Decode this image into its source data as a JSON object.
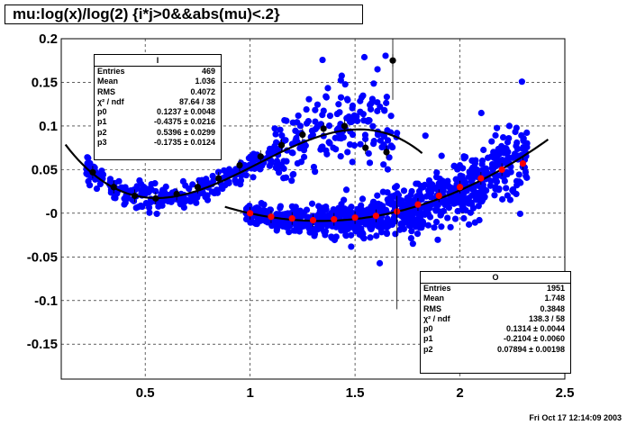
{
  "title": "mu:log(x)/log(2) {i*j>0&&abs(mu)<.2}",
  "footer": "Fri Oct 17 12:14:09 2003",
  "chart_data": {
    "type": "scatter",
    "xlim": [
      0.1,
      2.5
    ],
    "ylim": [
      -0.19,
      0.2
    ],
    "grid": true,
    "x_ticks": [
      "0.5",
      "1",
      "1.5",
      "2",
      "2.5"
    ],
    "y_ticks": [
      "0.2",
      "0.15",
      "0.1",
      "0.05",
      "-0",
      "-0.05",
      "-0.1",
      "-0.15"
    ],
    "series": [
      {
        "name": "I",
        "marker_color": "#000000",
        "fit_color": "#000000",
        "profile_x": [
          0.25,
          0.35,
          0.45,
          0.55,
          0.65,
          0.75,
          0.85,
          0.95,
          1.05,
          1.15,
          1.25,
          1.35,
          1.45,
          1.55,
          1.65,
          1.68
        ],
        "profile_y": [
          0.047,
          0.03,
          0.02,
          0.017,
          0.022,
          0.03,
          0.04,
          0.055,
          0.065,
          0.078,
          0.09,
          0.097,
          0.1,
          0.075,
          0.07,
          0.175
        ],
        "fit": {
          "p0": 0.1237,
          "p1": -0.4375,
          "p2": 0.5396,
          "p3": -0.1735,
          "x_range": [
            0.12,
            1.82
          ]
        }
      },
      {
        "name": "O",
        "marker_color": "#ff0000",
        "fit_color": "#000000",
        "profile_x": [
          1.0,
          1.1,
          1.2,
          1.3,
          1.4,
          1.5,
          1.6,
          1.7,
          1.8,
          1.9,
          2.0,
          2.1,
          2.2,
          2.3
        ],
        "profile_y": [
          0.0,
          -0.004,
          -0.006,
          -0.008,
          -0.007,
          -0.005,
          -0.003,
          0.002,
          0.01,
          0.02,
          0.03,
          0.04,
          0.05,
          0.057
        ],
        "fit": {
          "p0": 0.1314,
          "p1": -0.2104,
          "p2": 0.07894,
          "x_range": [
            0.88,
            2.42
          ]
        }
      }
    ],
    "scatter_color": "#0000ff"
  },
  "stats_I": {
    "name": "I",
    "rows": [
      [
        "Entries",
        "469"
      ],
      [
        "Mean",
        "1.036"
      ],
      [
        "RMS",
        "0.4072"
      ],
      [
        "χ² / ndf",
        "87.64 / 38"
      ],
      [
        "p0",
        "0.1237 ± 0.0048"
      ],
      [
        "p1",
        "-0.4375 ± 0.0216"
      ],
      [
        "p2",
        "0.5396 ± 0.0299"
      ],
      [
        "p3",
        "-0.1735 ± 0.0124"
      ]
    ]
  },
  "stats_O": {
    "name": "O",
    "rows": [
      [
        "Entries",
        "1951"
      ],
      [
        "Mean",
        "1.748"
      ],
      [
        "RMS",
        "0.3848"
      ],
      [
        "χ² / ndf",
        "138.3 / 58"
      ],
      [
        "p0",
        "0.1314 ± 0.0044"
      ],
      [
        "p1",
        "-0.2104 ± 0.0060"
      ],
      [
        "p2",
        "0.07894 ± 0.00198"
      ]
    ]
  }
}
